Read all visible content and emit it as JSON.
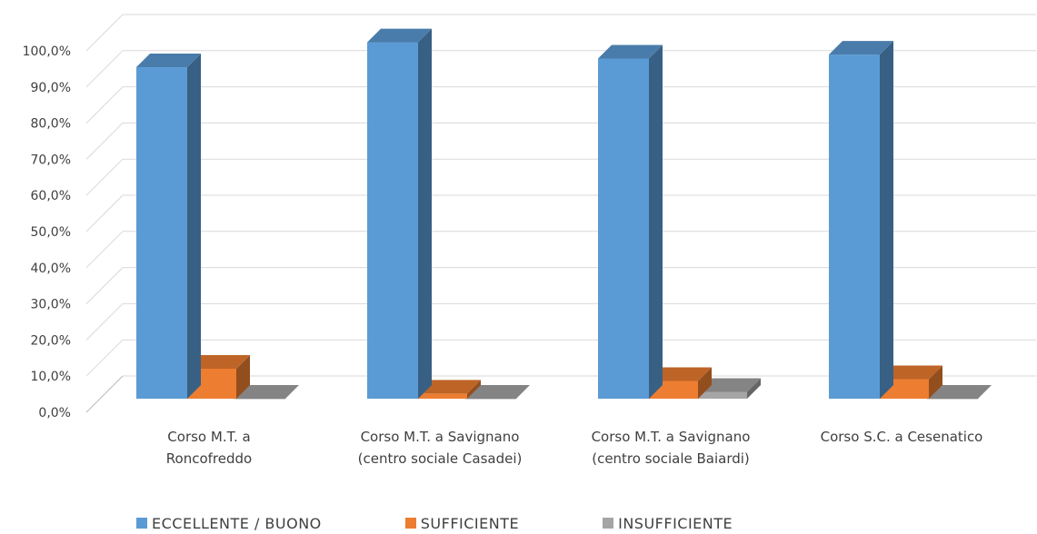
{
  "chart_data": {
    "type": "bar",
    "style": "3d-clustered-column",
    "categories": [
      [
        "Corso M.T. a",
        "Roncofreddo"
      ],
      [
        "Corso M.T. a Savignano",
        "(centro sociale Casadei)"
      ],
      [
        "Corso M.T. a Savignano",
        "(centro sociale Baiardi)"
      ],
      [
        "Corso S.C. a Cesenatico"
      ]
    ],
    "series": [
      {
        "name": "ECCELLENTE / BUONO",
        "color": "#5b9bd5",
        "values": [
          91.7,
          98.6,
          94.1,
          95.2
        ]
      },
      {
        "name": "SUFFICIENTE",
        "color": "#ed7d31",
        "values": [
          8.3,
          1.4,
          4.9,
          5.4
        ]
      },
      {
        "name": "INSUFFICIENTE",
        "color": "#a5a5a5",
        "values": [
          0.0,
          0.0,
          1.9,
          0.0
        ]
      }
    ],
    "ylim": [
      0,
      100
    ],
    "yticks": [
      "0,0%",
      "10,0%",
      "20,0%",
      "30,0%",
      "40,0%",
      "50,0%",
      "60,0%",
      "70,0%",
      "80,0%",
      "90,0%",
      "100,0%"
    ],
    "grid": true,
    "legend": "bottom"
  }
}
